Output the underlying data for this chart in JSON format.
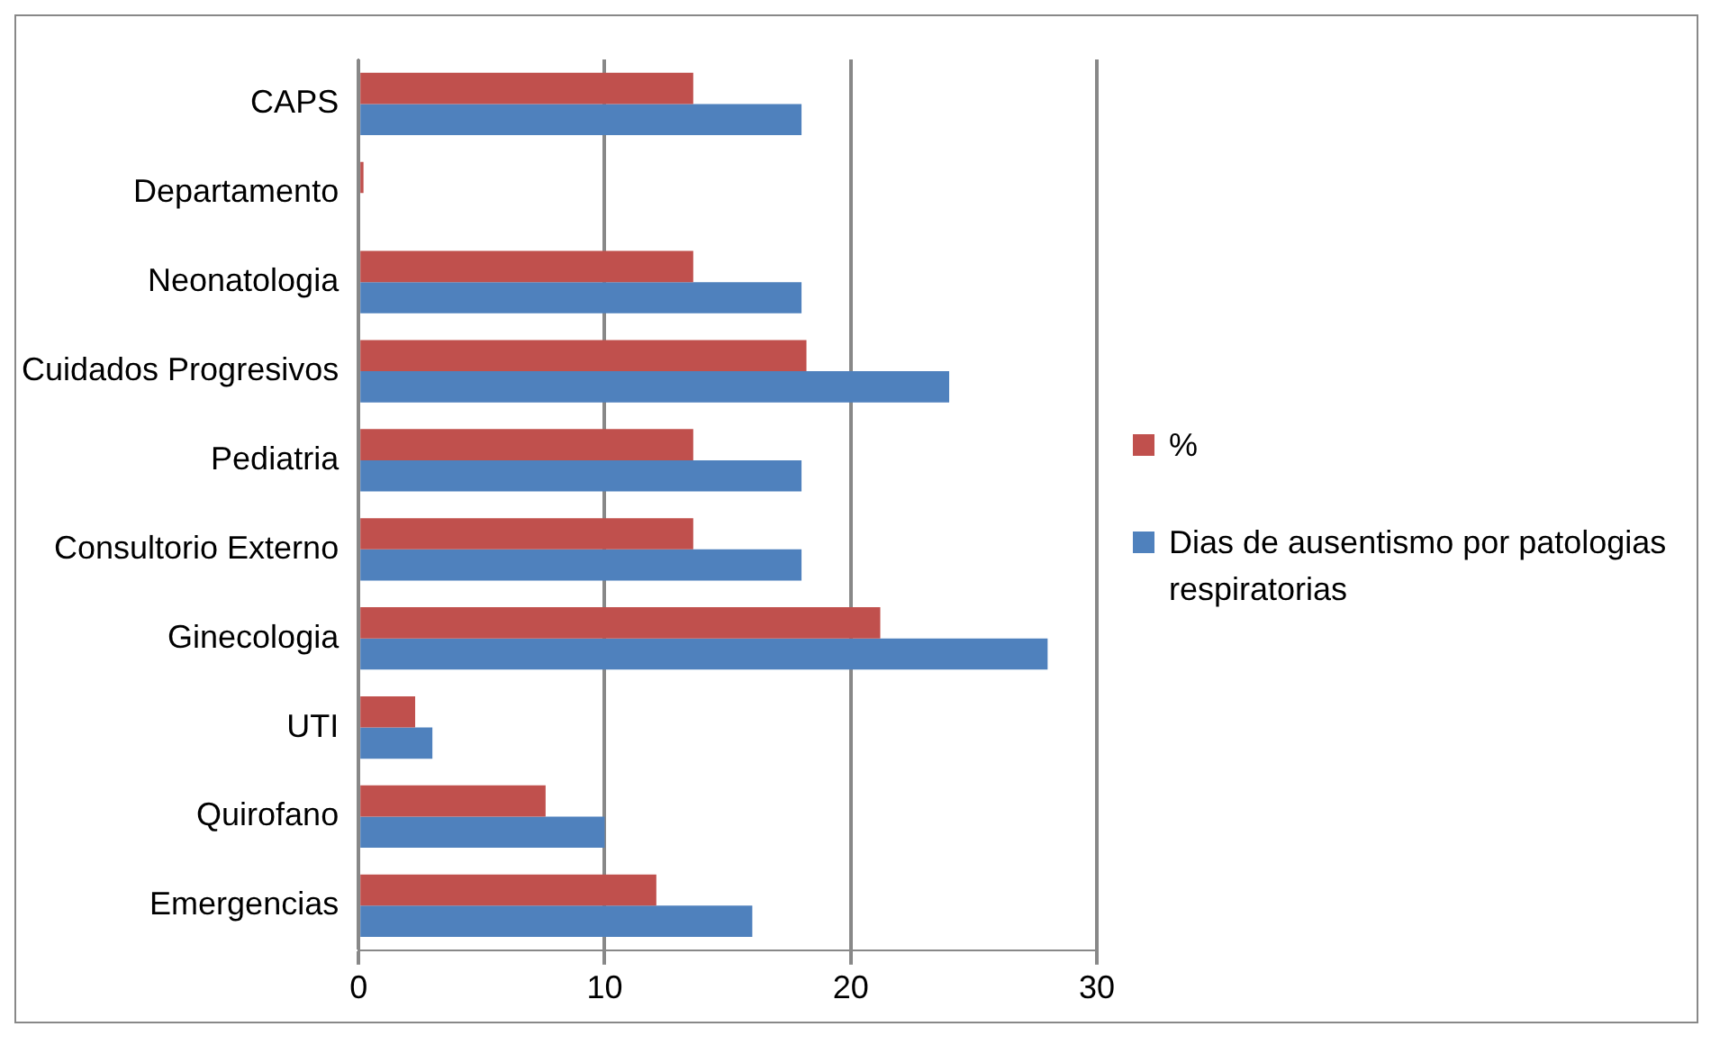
{
  "chart_data": {
    "type": "bar",
    "orientation": "horizontal",
    "categories": [
      "CAPS",
      "Departamento",
      "Neonatologia",
      "Cuidados Progresivos",
      "Pediatria",
      "Consultorio Externo",
      "Ginecologia",
      "UTI",
      "Quirofano",
      "Emergencias"
    ],
    "series": [
      {
        "name": "%",
        "color": "#c0504d",
        "values": [
          13.6,
          0.2,
          13.6,
          18.2,
          13.6,
          13.6,
          21.2,
          2.3,
          7.6,
          12.1
        ]
      },
      {
        "name": "Dias de ausentismo por patologias respiratorias",
        "color": "#4f81bd",
        "values": [
          18,
          null,
          18,
          24,
          18,
          18,
          28,
          3,
          10,
          16
        ]
      }
    ],
    "xlim": [
      0,
      30
    ],
    "xticks": [
      0,
      10,
      20,
      30
    ],
    "grid": "x",
    "legend": "right"
  }
}
